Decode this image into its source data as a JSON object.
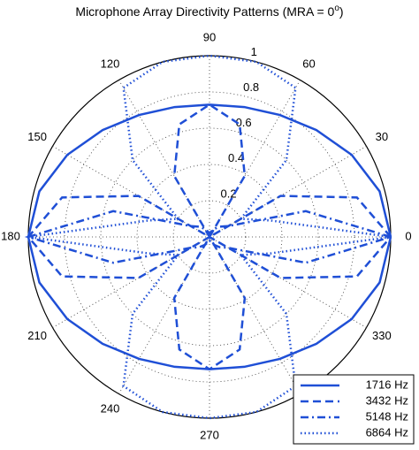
{
  "chart_data": {
    "type": "polar",
    "title": "Microphone Array Directivity Patterns (MRA = 0",
    "title_superscript": "o",
    "title_end": ")",
    "theta": [
      0,
      15,
      30,
      45,
      60,
      75,
      90,
      105,
      120,
      135,
      150,
      165,
      180,
      195,
      210,
      225,
      240,
      255,
      270,
      285,
      300,
      315,
      330,
      345,
      360
    ],
    "series": [
      {
        "name": "1716 Hz",
        "color": "#1f4fd6",
        "dash": "solid",
        "values": [
          1,
          0.972,
          0.906,
          0.834,
          0.777,
          0.742,
          0.73,
          0.742,
          0.777,
          0.834,
          0.906,
          0.972,
          1,
          0.972,
          0.906,
          0.834,
          0.777,
          0.742,
          0.73,
          0.742,
          0.777,
          0.834,
          0.906,
          0.972,
          1
        ]
      },
      {
        "name": "3432 Hz",
        "color": "#1f4fd6",
        "dash": "dashed",
        "values": [
          1,
          0.842,
          0.453,
          0,
          0.389,
          0.643,
          0.73,
          0.643,
          0.389,
          0,
          0.453,
          0.842,
          1,
          0.842,
          0.453,
          0,
          0.389,
          0.643,
          0.73,
          0.643,
          0.389,
          0,
          0.453,
          0.842,
          1
        ]
      },
      {
        "name": "5148 Hz",
        "color": "#1f4fd6",
        "dash": "dashdot",
        "values": [
          1,
          0.55,
          0.12,
          0.08,
          0.05,
          0.03,
          0.02,
          0.03,
          0.05,
          0.08,
          0.12,
          0.55,
          1,
          0.55,
          0.12,
          0.08,
          0.05,
          0.03,
          0.02,
          0.03,
          0.05,
          0.08,
          0.12,
          0.55,
          1
        ]
      },
      {
        "name": "6864 Hz",
        "color": "#1f4fd6",
        "dash": "dotted",
        "values": [
          1,
          0.35,
          0.2,
          0.6,
          0.95,
          1,
          1,
          1,
          0.95,
          0.6,
          0.2,
          0.35,
          1,
          0.35,
          0.2,
          0.6,
          0.95,
          1,
          1,
          1,
          0.95,
          0.6,
          0.2,
          0.35,
          1
        ]
      }
    ],
    "rlim": [
      0,
      1
    ],
    "rticks": [
      0.2,
      0.4,
      0.6,
      0.8,
      1
    ],
    "thetaticks": [
      0,
      30,
      60,
      90,
      120,
      150,
      180,
      210,
      240,
      270,
      300,
      330
    ],
    "grid": true,
    "legend": "lower right"
  }
}
